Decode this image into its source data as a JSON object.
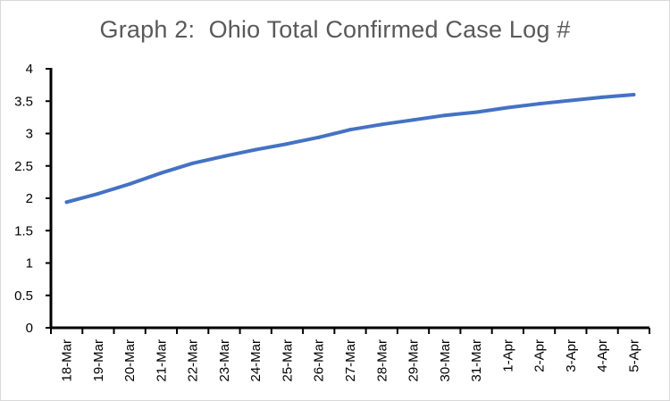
{
  "chart_data": {
    "type": "line",
    "title": "Graph 2:  Ohio Total Confirmed Case Log #",
    "xlabel": "",
    "ylabel": "",
    "categories": [
      "18-Mar",
      "19-Mar",
      "20-Mar",
      "21-Mar",
      "22-Mar",
      "23-Mar",
      "24-Mar",
      "25-Mar",
      "26-Mar",
      "27-Mar",
      "28-Mar",
      "29-Mar",
      "30-Mar",
      "31-Mar",
      "1-Apr",
      "2-Apr",
      "3-Apr",
      "4-Apr",
      "5-Apr"
    ],
    "y_ticks": [
      "0",
      "0.5",
      "1",
      "1.5",
      "2",
      "2.5",
      "3",
      "3.5",
      "4"
    ],
    "ylim": [
      0,
      4
    ],
    "grid": false,
    "legend": "none",
    "series": [
      {
        "color": "#4472C4",
        "values": [
          1.94,
          2.07,
          2.22,
          2.39,
          2.54,
          2.65,
          2.75,
          2.84,
          2.94,
          3.06,
          3.14,
          3.21,
          3.28,
          3.33,
          3.4,
          3.46,
          3.51,
          3.56,
          3.6
        ]
      }
    ]
  }
}
